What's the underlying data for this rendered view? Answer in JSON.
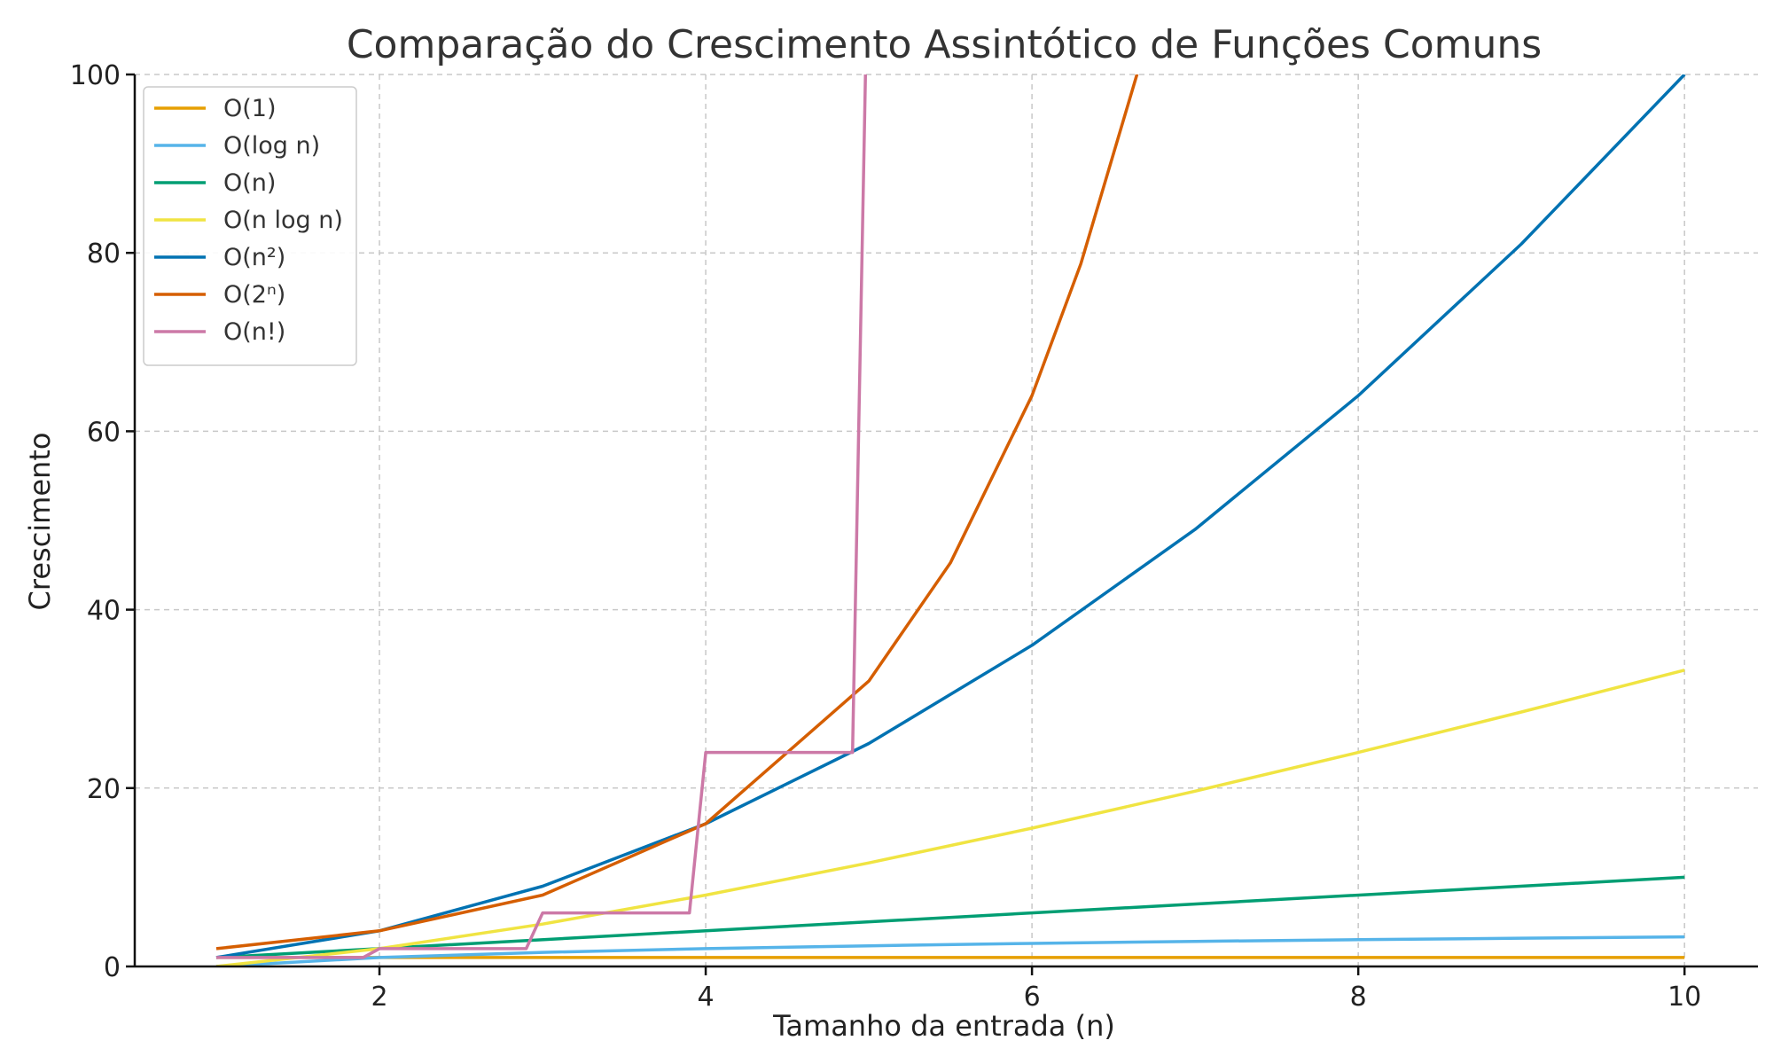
{
  "chart_data": {
    "type": "line",
    "title": "Comparação do Crescimento Assintótico de Funções Comuns",
    "xlabel": "Tamanho da entrada (n)",
    "ylabel": "Crescimento",
    "xlim": [
      0.5,
      10.45
    ],
    "ylim": [
      0,
      100
    ],
    "xticks": [
      2,
      4,
      6,
      8,
      10
    ],
    "yticks": [
      0,
      20,
      40,
      60,
      80,
      100
    ],
    "grid": true,
    "legend_position": "top-left",
    "series": [
      {
        "name": "O(1)",
        "color": "#E69F00",
        "x": [
          1,
          10
        ],
        "y": [
          1,
          1
        ]
      },
      {
        "name": "O(log n)",
        "color": "#56B4E9",
        "x": [
          1,
          2,
          3,
          4,
          5,
          6,
          7,
          8,
          9,
          10
        ],
        "y": [
          0,
          1,
          1.58,
          2,
          2.32,
          2.58,
          2.81,
          3,
          3.17,
          3.32
        ]
      },
      {
        "name": "O(n)",
        "color": "#009E73",
        "x": [
          1,
          10
        ],
        "y": [
          1,
          10
        ]
      },
      {
        "name": "O(n log n)",
        "color": "#F0E442",
        "x": [
          1,
          2,
          3,
          4,
          5,
          6,
          7,
          8,
          9,
          10
        ],
        "y": [
          0,
          2,
          4.75,
          8,
          11.61,
          15.51,
          19.65,
          24,
          28.53,
          33.22
        ]
      },
      {
        "name": "O(n²)",
        "color": "#0072B2",
        "x": [
          1,
          2,
          3,
          4,
          5,
          6,
          7,
          8,
          9,
          10
        ],
        "y": [
          1,
          4,
          9,
          16,
          25,
          36,
          49,
          64,
          81,
          100
        ]
      },
      {
        "name": "O(2ⁿ)",
        "color": "#D55E00",
        "x": [
          1,
          2,
          3,
          4,
          5,
          5.5,
          6,
          6.3,
          6.65
        ],
        "y": [
          2,
          4,
          8,
          16,
          32,
          45.25,
          64,
          78.8,
          100.4
        ]
      },
      {
        "name": "O(n!)",
        "color": "#CC79A7",
        "x": [
          1,
          1.9,
          2,
          2.9,
          3,
          3.9,
          4,
          4.9,
          5
        ],
        "y": [
          1,
          1,
          2,
          2,
          6,
          6,
          24,
          24,
          120
        ]
      }
    ]
  }
}
